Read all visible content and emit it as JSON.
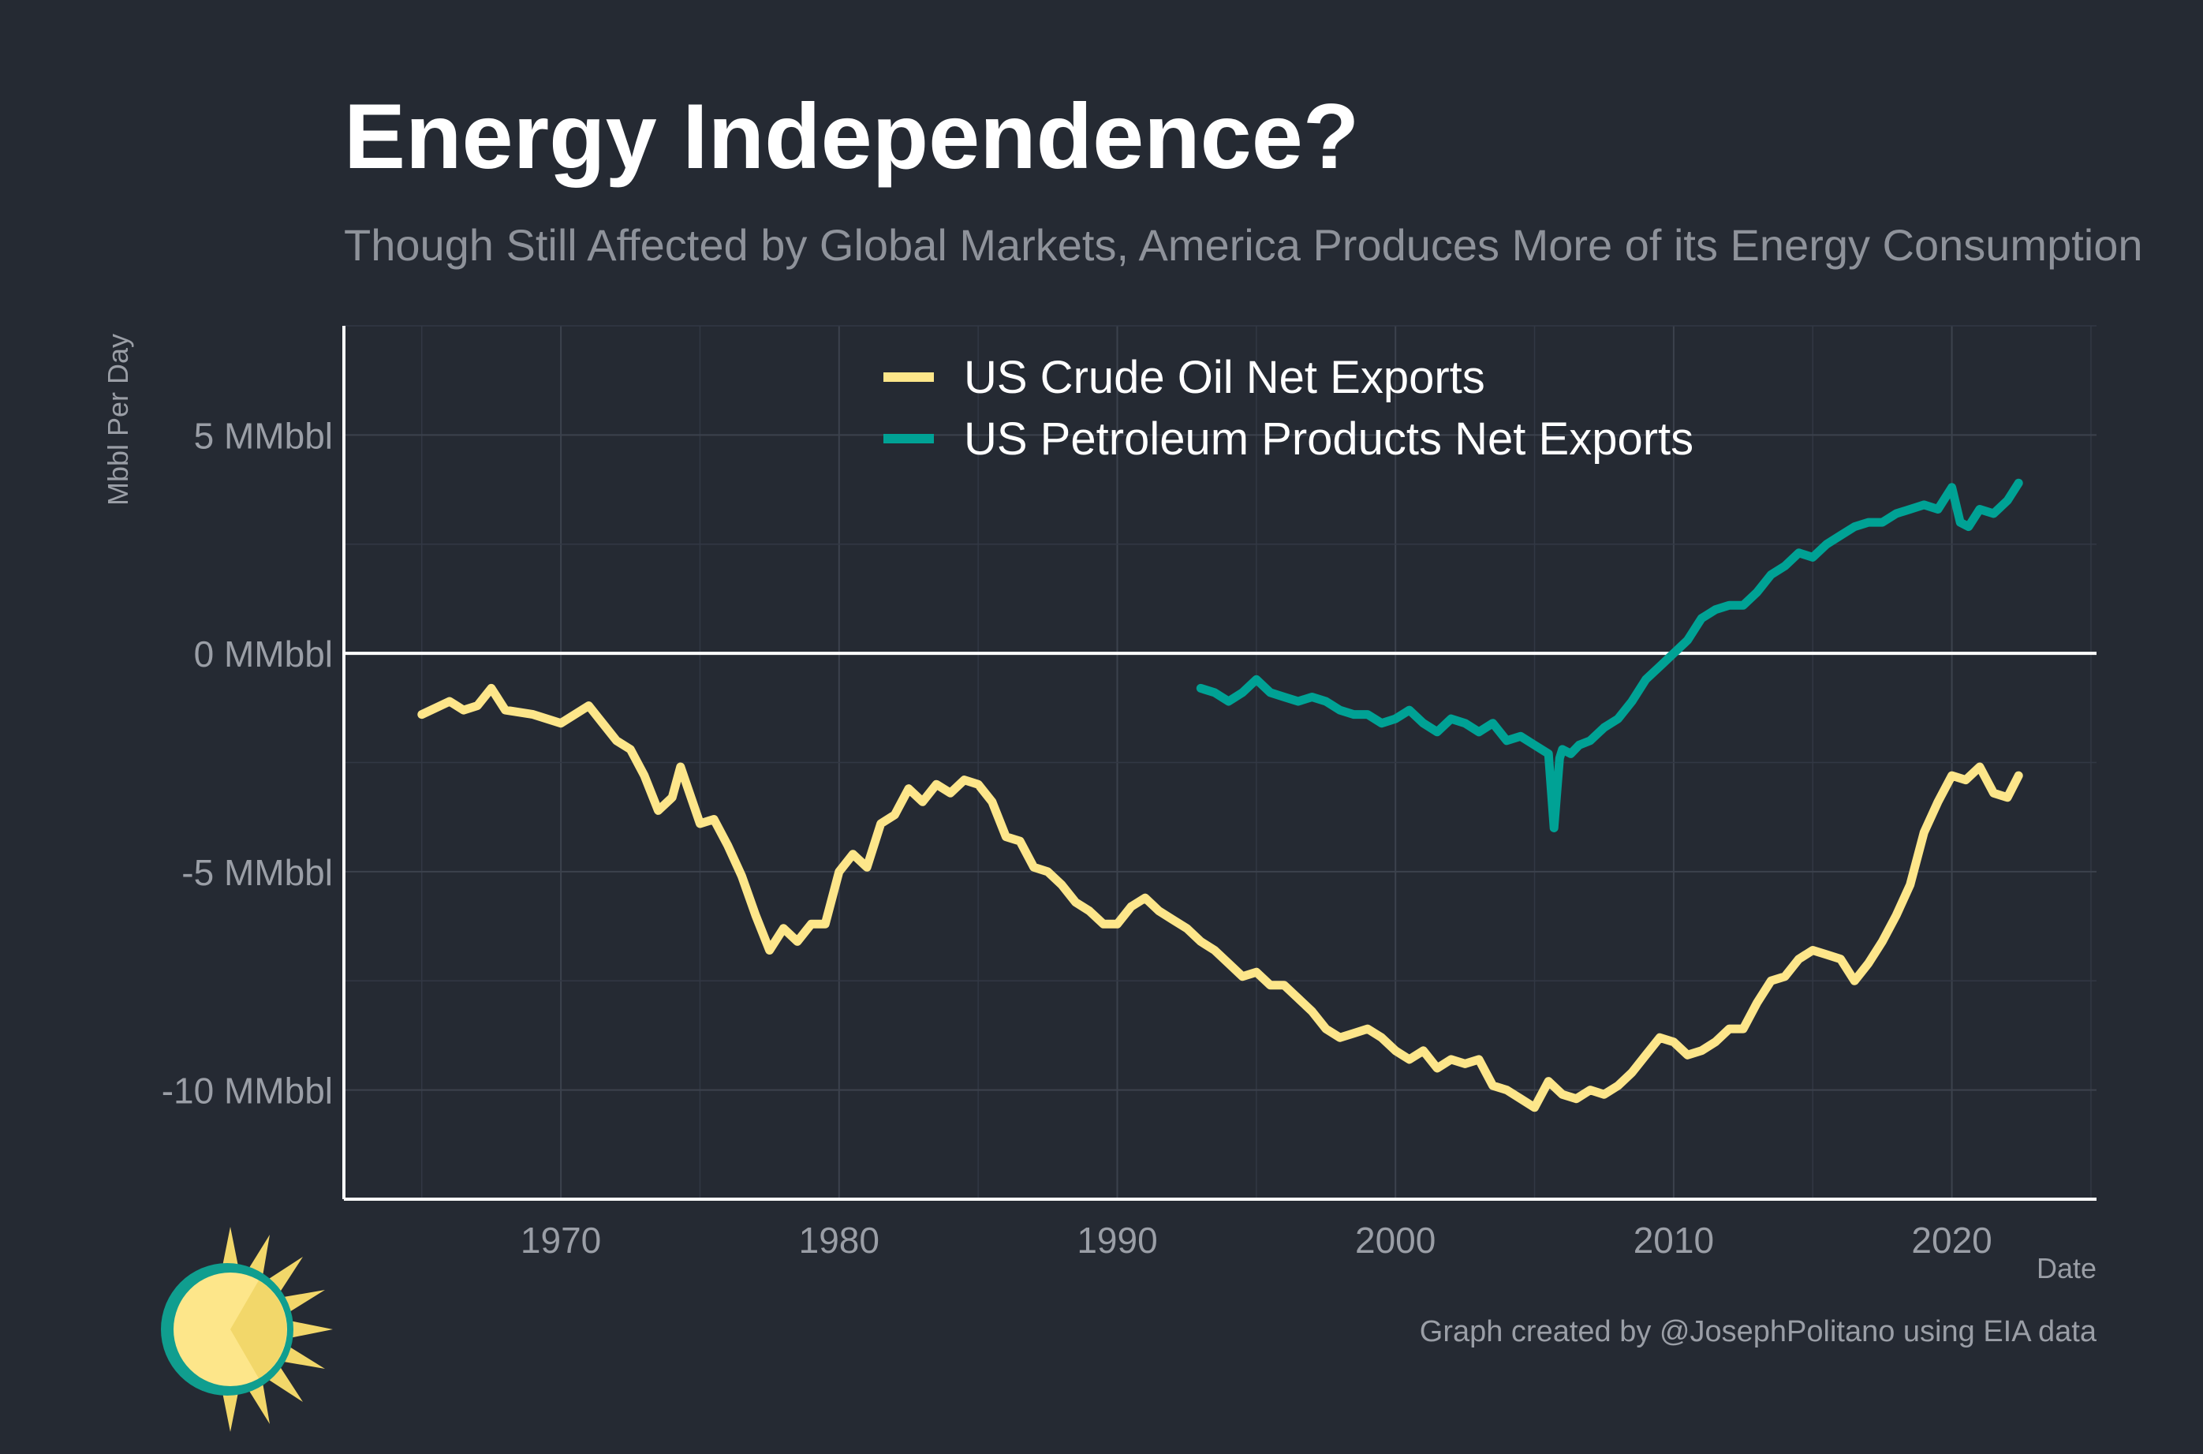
{
  "title": "Energy Independence?",
  "subtitle": "Though Still Affected by Global Markets, America Produces More of its Energy Consumption",
  "caption": "Graph created by @JosephPolitano using EIA data",
  "logo_icon": "sun-logo-icon",
  "colors": {
    "background": "#252a33",
    "grid": "#3c424d",
    "axis": "#ffffff",
    "crude": "#fde68a",
    "products": "#00a295"
  },
  "chart_data": {
    "type": "line",
    "title": "Energy Independence?",
    "subtitle": "Though Still Affected by Global Markets, America Produces More of its Energy Consumption",
    "xlabel": "Date",
    "ylabel": "Mbbl Per Day",
    "xlim": [
      1962.2,
      2025.2
    ],
    "ylim": [
      -12.5,
      7.5
    ],
    "x_ticks": [
      1970,
      1980,
      1990,
      2000,
      2010,
      2020
    ],
    "x_tick_labels": [
      "1970",
      "1980",
      "1990",
      "2000",
      "2010",
      "2020"
    ],
    "y_ticks": [
      5,
      0,
      -5,
      -10
    ],
    "y_tick_labels": [
      "5 MMbbl",
      "0 MMbbl",
      "-5 MMbbl",
      "-10 MMbbl"
    ],
    "grid": true,
    "zero_line": true,
    "legend_position": "top-center",
    "series": [
      {
        "name": "US Crude Oil Net Exports",
        "color": "#fde68a",
        "x": [
          1965.0,
          1966.0,
          1966.5,
          1967.0,
          1967.5,
          1968.0,
          1969.0,
          1970.0,
          1971.0,
          1971.5,
          1972.0,
          1972.5,
          1973.0,
          1973.5,
          1974.0,
          1974.3,
          1975.0,
          1975.5,
          1976.0,
          1976.5,
          1977.0,
          1977.5,
          1978.0,
          1978.5,
          1979.0,
          1979.5,
          1980.0,
          1980.5,
          1981.0,
          1981.5,
          1982.0,
          1982.5,
          1983.0,
          1983.5,
          1984.0,
          1984.5,
          1985.0,
          1985.5,
          1986.0,
          1986.5,
          1987.0,
          1987.5,
          1988.0,
          1988.5,
          1989.0,
          1989.5,
          1990.0,
          1990.5,
          1991.0,
          1991.5,
          1992.0,
          1992.5,
          1993.0,
          1993.5,
          1994.0,
          1994.5,
          1995.0,
          1995.5,
          1996.0,
          1996.5,
          1997.0,
          1997.5,
          1998.0,
          1998.5,
          1999.0,
          1999.5,
          2000.0,
          2000.5,
          2001.0,
          2001.5,
          2002.0,
          2002.5,
          2003.0,
          2003.5,
          2004.0,
          2004.5,
          2005.0,
          2005.5,
          2006.0,
          2006.5,
          2007.0,
          2007.5,
          2008.0,
          2008.5,
          2009.0,
          2009.5,
          2010.0,
          2010.5,
          2011.0,
          2011.5,
          2012.0,
          2012.5,
          2013.0,
          2013.5,
          2014.0,
          2014.5,
          2015.0,
          2015.5,
          2016.0,
          2016.5,
          2017.0,
          2017.5,
          2018.0,
          2018.5,
          2019.0,
          2019.5,
          2020.0,
          2020.5,
          2021.0,
          2021.5,
          2022.0,
          2022.4
        ],
        "values": [
          -1.4,
          -1.1,
          -1.3,
          -1.2,
          -0.8,
          -1.3,
          -1.4,
          -1.6,
          -1.2,
          -1.6,
          -2.0,
          -2.2,
          -2.8,
          -3.6,
          -3.3,
          -2.6,
          -3.9,
          -3.8,
          -4.4,
          -5.1,
          -6.0,
          -6.8,
          -6.3,
          -6.6,
          -6.2,
          -6.2,
          -5.0,
          -4.6,
          -4.9,
          -3.9,
          -3.7,
          -3.1,
          -3.4,
          -3.0,
          -3.2,
          -2.9,
          -3.0,
          -3.4,
          -4.2,
          -4.3,
          -4.9,
          -5.0,
          -5.3,
          -5.7,
          -5.9,
          -6.2,
          -6.2,
          -5.8,
          -5.6,
          -5.9,
          -6.1,
          -6.3,
          -6.6,
          -6.8,
          -7.1,
          -7.4,
          -7.3,
          -7.6,
          -7.6,
          -7.9,
          -8.2,
          -8.6,
          -8.8,
          -8.7,
          -8.6,
          -8.8,
          -9.1,
          -9.3,
          -9.1,
          -9.5,
          -9.3,
          -9.4,
          -9.3,
          -9.9,
          -10.0,
          -10.2,
          -10.4,
          -9.8,
          -10.1,
          -10.2,
          -10.0,
          -10.1,
          -9.9,
          -9.6,
          -9.2,
          -8.8,
          -8.9,
          -9.2,
          -9.1,
          -8.9,
          -8.6,
          -8.6,
          -8.0,
          -7.5,
          -7.4,
          -7.0,
          -6.8,
          -6.9,
          -7.0,
          -7.5,
          -7.1,
          -6.6,
          -6.0,
          -5.3,
          -4.1,
          -3.4,
          -2.8,
          -2.9,
          -2.6,
          -3.2,
          -3.3,
          -2.8
        ]
      },
      {
        "name": "US Petroleum Products Net Exports",
        "color": "#00a295",
        "x": [
          1993.0,
          1993.5,
          1994.0,
          1994.5,
          1995.0,
          1995.5,
          1996.0,
          1996.5,
          1997.0,
          1997.5,
          1998.0,
          1998.5,
          1999.0,
          1999.5,
          2000.0,
          2000.5,
          2001.0,
          2001.5,
          2002.0,
          2002.5,
          2003.0,
          2003.5,
          2004.0,
          2004.5,
          2005.0,
          2005.5,
          2005.7,
          2005.9,
          2006.0,
          2006.3,
          2006.6,
          2007.0,
          2007.5,
          2008.0,
          2008.5,
          2009.0,
          2009.5,
          2010.0,
          2010.5,
          2011.0,
          2011.5,
          2012.0,
          2012.5,
          2013.0,
          2013.5,
          2014.0,
          2014.5,
          2015.0,
          2015.5,
          2016.0,
          2016.5,
          2017.0,
          2017.5,
          2018.0,
          2018.5,
          2019.0,
          2019.5,
          2020.0,
          2020.3,
          2020.6,
          2021.0,
          2021.5,
          2022.0,
          2022.4
        ],
        "values": [
          -0.8,
          -0.9,
          -1.1,
          -0.9,
          -0.6,
          -0.9,
          -1.0,
          -1.1,
          -1.0,
          -1.1,
          -1.3,
          -1.4,
          -1.4,
          -1.6,
          -1.5,
          -1.3,
          -1.6,
          -1.8,
          -1.5,
          -1.6,
          -1.8,
          -1.6,
          -2.0,
          -1.9,
          -2.1,
          -2.3,
          -4.0,
          -2.4,
          -2.2,
          -2.3,
          -2.1,
          -2.0,
          -1.7,
          -1.5,
          -1.1,
          -0.6,
          -0.3,
          0.0,
          0.3,
          0.8,
          1.0,
          1.1,
          1.1,
          1.4,
          1.8,
          2.0,
          2.3,
          2.2,
          2.5,
          2.7,
          2.9,
          3.0,
          3.0,
          3.2,
          3.3,
          3.4,
          3.3,
          3.8,
          3.0,
          2.9,
          3.3,
          3.2,
          3.5,
          3.9
        ]
      }
    ]
  }
}
